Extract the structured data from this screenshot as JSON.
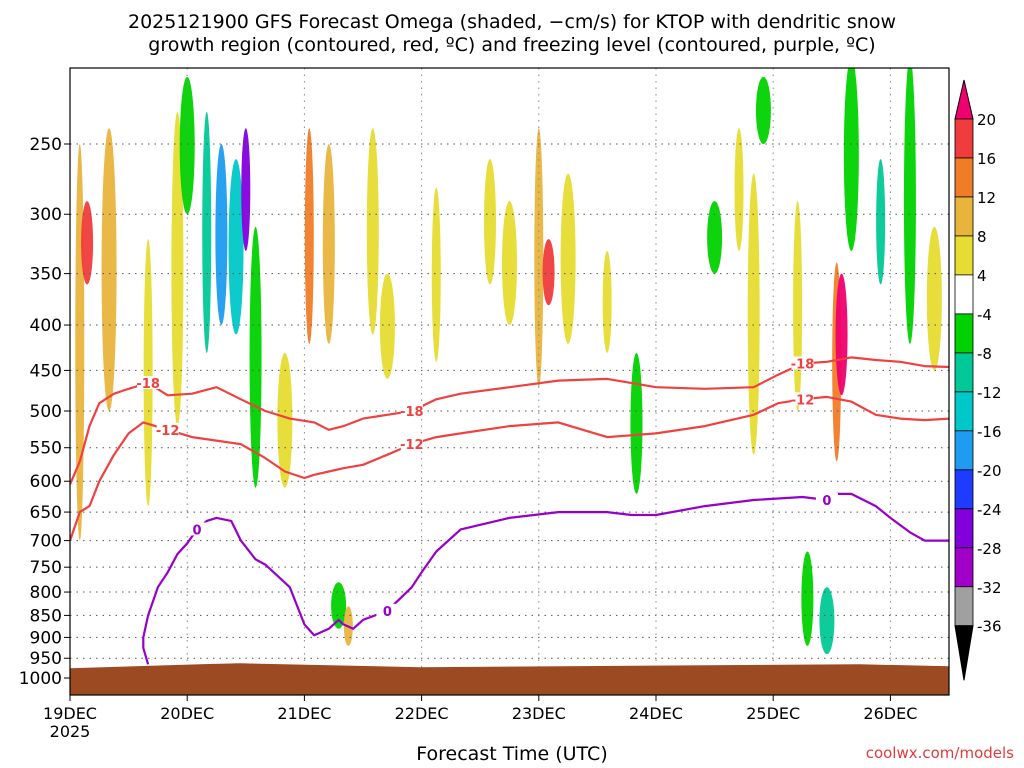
{
  "chart_data": {
    "type": "heatmap",
    "title_lines": [
      "2025121900 GFS Forecast Omega (shaded, −cm/s) for KTOP with dendritic snow",
      "growth region (contoured, red, ºC) and freezing level (contoured, purple, ºC)"
    ],
    "xlabel": "Forecast Time (UTC)",
    "credit": "coolwx.com/models",
    "x_ticks": [
      "19DEC",
      "20DEC",
      "21DEC",
      "22DEC",
      "23DEC",
      "24DEC",
      "25DEC",
      "26DEC"
    ],
    "x_year": "2025",
    "x_range_hours": [
      0,
      180
    ],
    "y_ticks": [
      250,
      300,
      350,
      400,
      450,
      500,
      550,
      600,
      650,
      700,
      750,
      800,
      850,
      900,
      950,
      1000
    ],
    "y_range_hpa": [
      200,
      1025
    ],
    "colorbar_levels": [
      20,
      16,
      12,
      8,
      4,
      -4,
      -8,
      -12,
      -16,
      -20,
      -24,
      -28,
      -32,
      -36
    ],
    "colorbar_colors": [
      "#f0006f",
      "#f03c3c",
      "#f07c28",
      "#e8b43c",
      "#e6dc32",
      "#ffffff",
      "#00d200",
      "#00c896",
      "#00c8c8",
      "#1e9cf0",
      "#1e3cff",
      "#8200dc",
      "#a000c8",
      "#a0a0a0",
      "#000000"
    ],
    "omega_bands": [
      {
        "h": 2,
        "p0": 250,
        "p1": 700,
        "level": 8
      },
      {
        "h": 3.5,
        "p0": 290,
        "p1": 360,
        "level": 16
      },
      {
        "h": 8,
        "p0": 240,
        "p1": 500,
        "level": 8
      },
      {
        "h": 16,
        "p0": 320,
        "p1": 640,
        "level": 4
      },
      {
        "h": 22,
        "p0": 230,
        "p1": 520,
        "level": 4
      },
      {
        "h": 24,
        "p0": 210,
        "p1": 300,
        "level": -8
      },
      {
        "h": 28,
        "p0": 230,
        "p1": 430,
        "level": -12
      },
      {
        "h": 31,
        "p0": 250,
        "p1": 400,
        "level": -20
      },
      {
        "h": 34,
        "p0": 260,
        "p1": 410,
        "level": -16
      },
      {
        "h": 36,
        "p0": 240,
        "p1": 330,
        "level": -28
      },
      {
        "h": 38,
        "p0": 310,
        "p1": 610,
        "level": -8
      },
      {
        "h": 44,
        "p0": 430,
        "p1": 610,
        "level": 4
      },
      {
        "h": 49,
        "p0": 240,
        "p1": 420,
        "level": 12
      },
      {
        "h": 53,
        "p0": 250,
        "p1": 420,
        "level": 8
      },
      {
        "h": 55,
        "p0": 780,
        "p1": 880,
        "level": -8
      },
      {
        "h": 57,
        "p0": 830,
        "p1": 920,
        "level": 8
      },
      {
        "h": 62,
        "p0": 240,
        "p1": 410,
        "level": 4
      },
      {
        "h": 65,
        "p0": 350,
        "p1": 460,
        "level": 4
      },
      {
        "h": 75,
        "p0": 280,
        "p1": 440,
        "level": 4
      },
      {
        "h": 86,
        "p0": 260,
        "p1": 360,
        "level": 4
      },
      {
        "h": 90,
        "p0": 290,
        "p1": 400,
        "level": 4
      },
      {
        "h": 96,
        "p0": 240,
        "p1": 470,
        "level": 8
      },
      {
        "h": 98,
        "p0": 320,
        "p1": 380,
        "level": 16
      },
      {
        "h": 102,
        "p0": 270,
        "p1": 420,
        "level": 4
      },
      {
        "h": 110,
        "p0": 330,
        "p1": 430,
        "level": 4
      },
      {
        "h": 116,
        "p0": 430,
        "p1": 620,
        "level": -8
      },
      {
        "h": 132,
        "p0": 290,
        "p1": 350,
        "level": -8
      },
      {
        "h": 137,
        "p0": 240,
        "p1": 330,
        "level": 4
      },
      {
        "h": 140,
        "p0": 270,
        "p1": 560,
        "level": 4
      },
      {
        "h": 142,
        "p0": 210,
        "p1": 250,
        "level": -8
      },
      {
        "h": 149,
        "p0": 290,
        "p1": 500,
        "level": 4
      },
      {
        "h": 151,
        "p0": 720,
        "p1": 920,
        "level": -8
      },
      {
        "h": 155,
        "p0": 790,
        "p1": 940,
        "level": -12
      },
      {
        "h": 157,
        "p0": 340,
        "p1": 570,
        "level": 12
      },
      {
        "h": 158,
        "p0": 350,
        "p1": 480,
        "level": 20
      },
      {
        "h": 160,
        "p0": 200,
        "p1": 330,
        "level": -8
      },
      {
        "h": 166,
        "p0": 260,
        "p1": 360,
        "level": -12
      },
      {
        "h": 172,
        "p0": 200,
        "p1": 420,
        "level": -8
      },
      {
        "h": 177,
        "p0": 310,
        "p1": 450,
        "level": 4
      }
    ],
    "contours": [
      {
        "label": "-18",
        "color": "#f04040",
        "hours": [
          0,
          2,
          4,
          6,
          9,
          12,
          16,
          20,
          25,
          30,
          35,
          40,
          45,
          50,
          53,
          56,
          60,
          65,
          70,
          75,
          80,
          90,
          100,
          110,
          120,
          130,
          140,
          145,
          150,
          155,
          160,
          165,
          170,
          175,
          180
        ],
        "hpa": [
          605,
          570,
          520,
          490,
          478,
          472,
          465,
          480,
          478,
          470,
          485,
          500,
          510,
          515,
          525,
          520,
          510,
          505,
          500,
          485,
          478,
          470,
          462,
          460,
          470,
          472,
          470,
          455,
          442,
          440,
          435,
          438,
          440,
          445,
          446
        ]
      },
      {
        "label": "-12",
        "color": "#f04040",
        "hours": [
          0,
          2,
          4,
          6,
          9,
          12,
          15,
          20,
          25,
          30,
          35,
          40,
          44,
          48,
          50,
          53,
          56,
          60,
          65,
          70,
          75,
          80,
          90,
          100,
          105,
          110,
          120,
          130,
          140,
          145,
          150,
          155,
          160,
          165,
          170,
          175,
          180
        ],
        "hpa": [
          700,
          650,
          640,
          600,
          560,
          530,
          515,
          525,
          535,
          540,
          545,
          565,
          585,
          595,
          590,
          585,
          580,
          575,
          560,
          545,
          535,
          530,
          520,
          515,
          525,
          535,
          530,
          520,
          505,
          490,
          485,
          482,
          488,
          505,
          510,
          512,
          510
        ]
      },
      {
        "label": "0",
        "color": "#9600c8",
        "hours": [
          16,
          15,
          15,
          16,
          18,
          20,
          22,
          24,
          26,
          28,
          30,
          33,
          35,
          38,
          40,
          45,
          48,
          50,
          53,
          55,
          56,
          58,
          60,
          65,
          70,
          72,
          75,
          80,
          90,
          100,
          110,
          115,
          120,
          130,
          140,
          150,
          155,
          157,
          160,
          165,
          168,
          172,
          175,
          180
        ],
        "hpa": [
          965,
          925,
          900,
          850,
          790,
          760,
          725,
          705,
          680,
          665,
          660,
          665,
          700,
          735,
          745,
          790,
          870,
          895,
          880,
          860,
          870,
          880,
          860,
          840,
          790,
          760,
          720,
          680,
          660,
          650,
          650,
          655,
          655,
          640,
          630,
          625,
          630,
          620,
          620,
          640,
          660,
          685,
          700,
          700
        ]
      }
    ],
    "ground_top_hpa": 970
  }
}
